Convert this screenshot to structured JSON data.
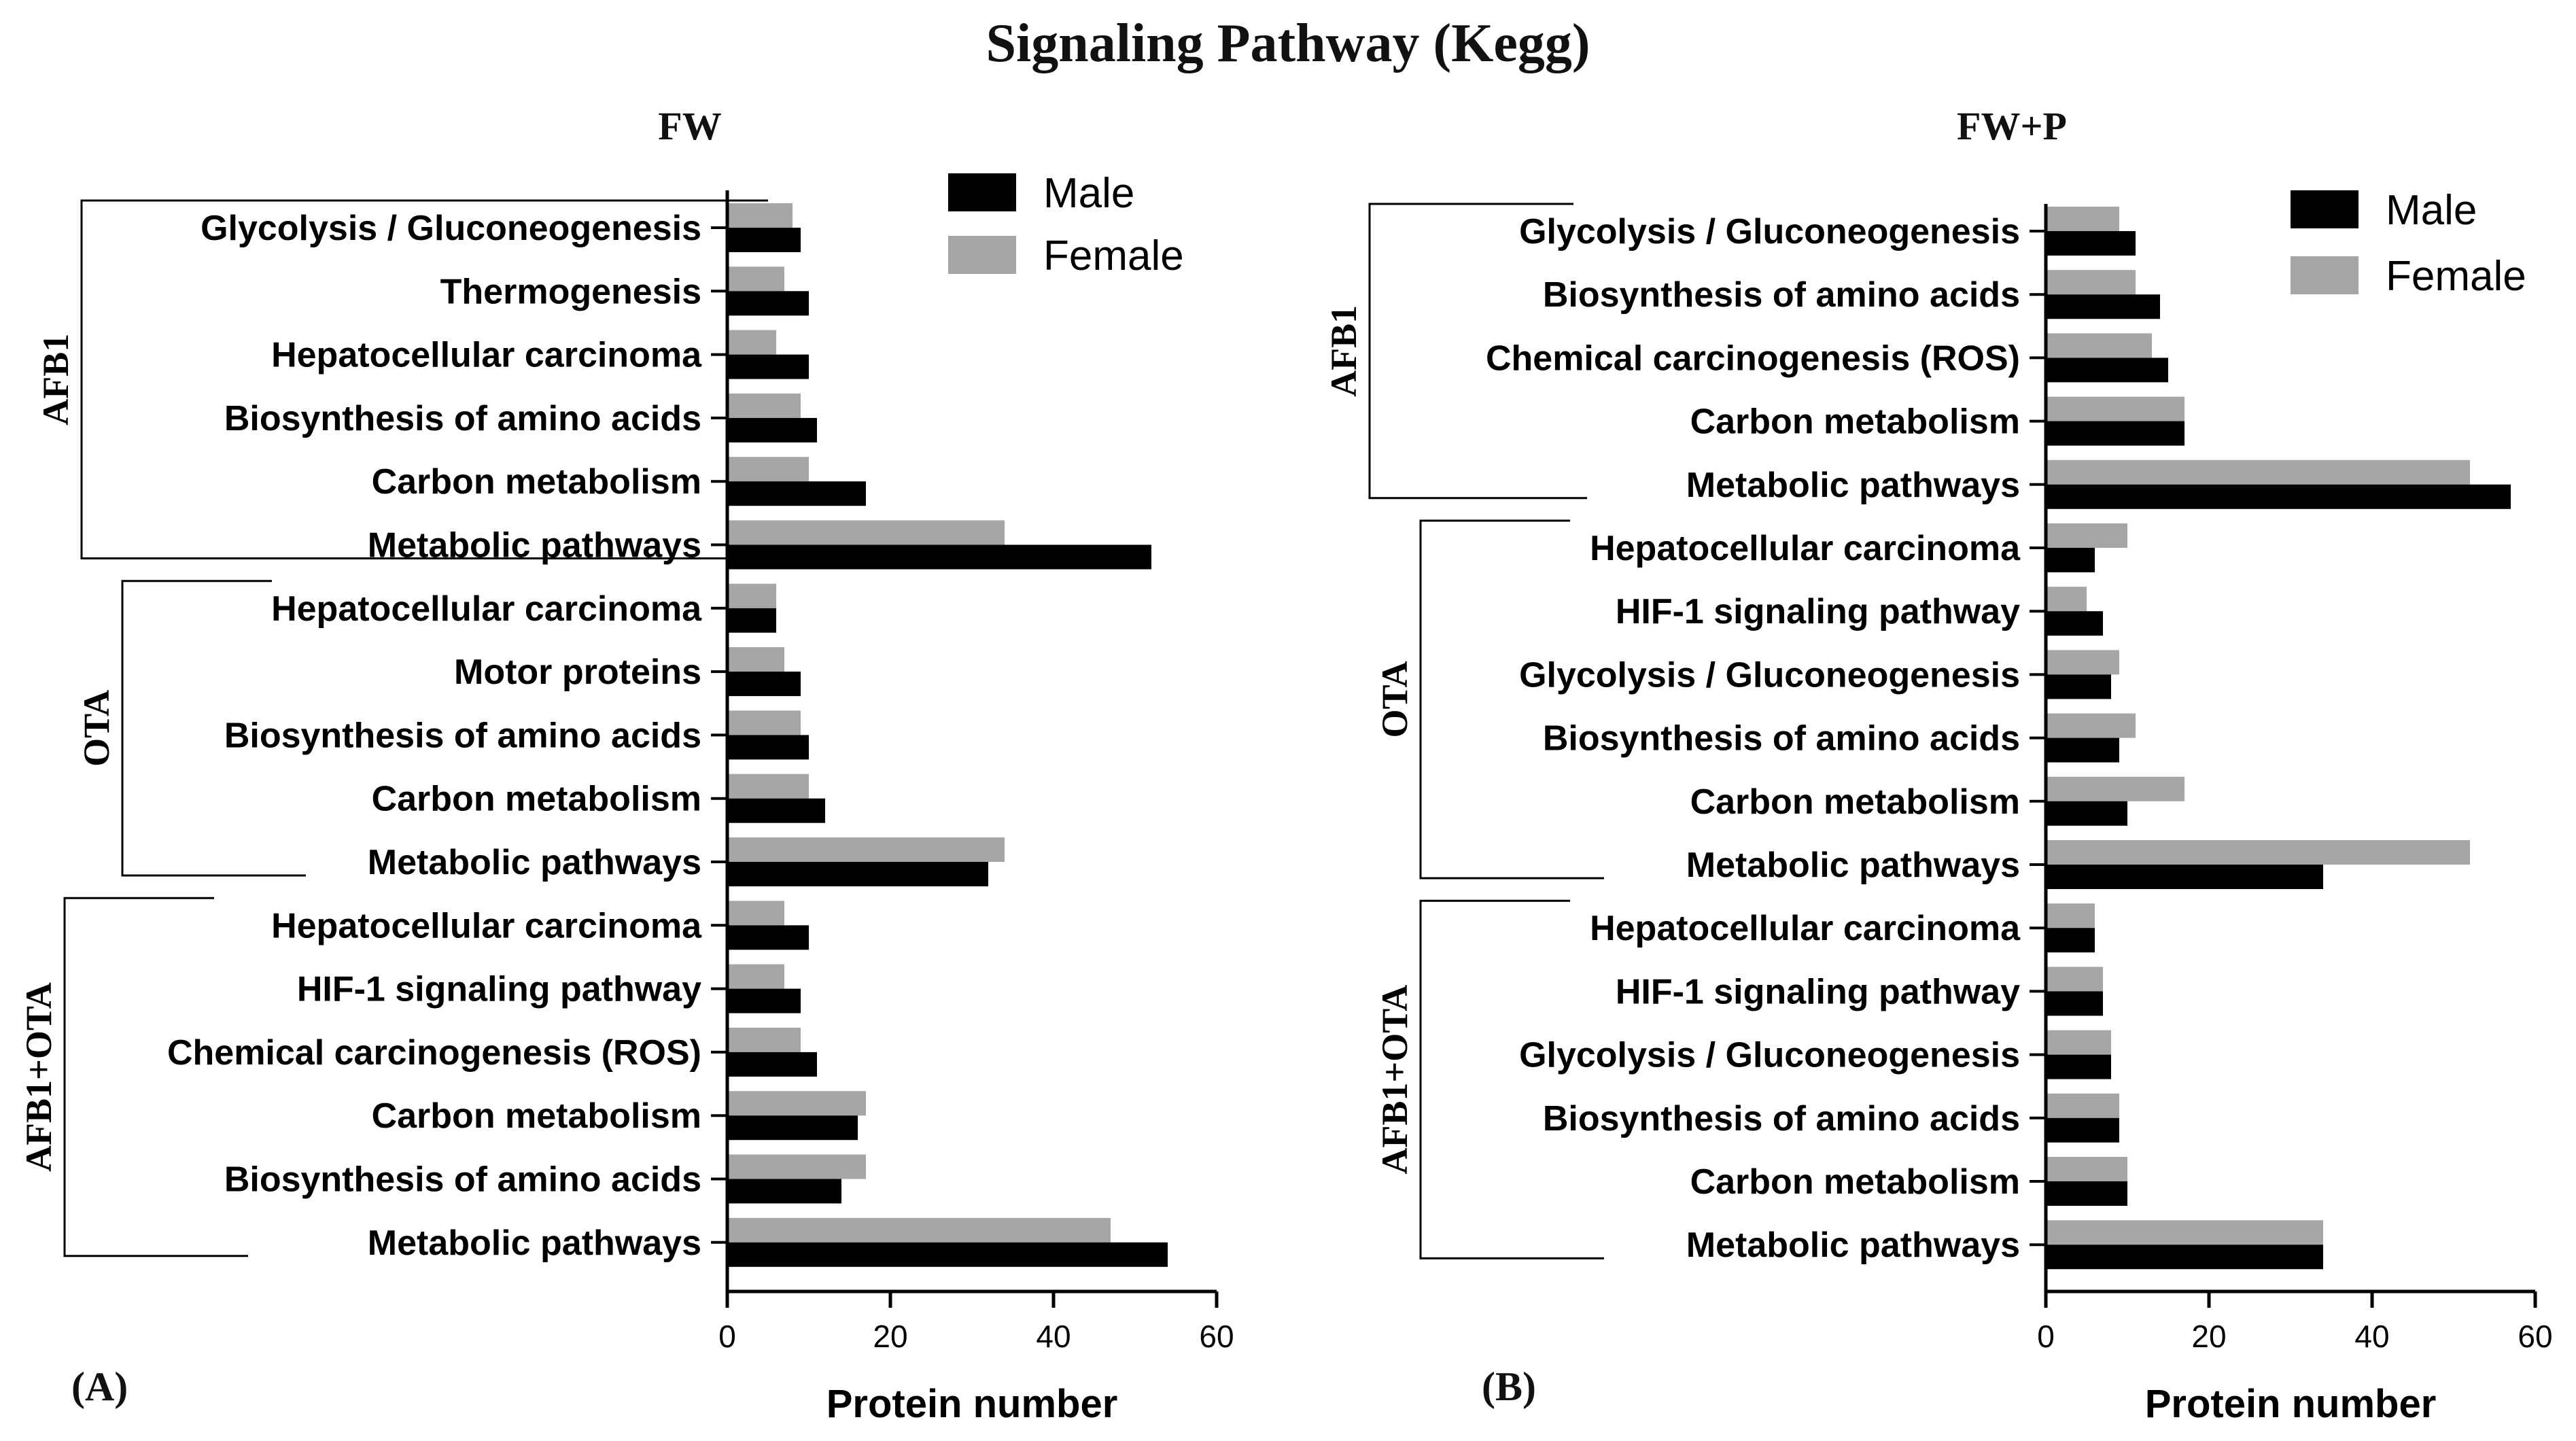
{
  "figure": {
    "title": "Signaling Pathway (Kegg)",
    "colors": {
      "male": "#000000",
      "female": "#a6a6a6",
      "axis": "#000000"
    }
  },
  "chart_data": [
    {
      "type": "bar",
      "orientation": "horizontal",
      "panel_label": "(A)",
      "title": "FW",
      "xlabel": "Protein number",
      "ylabel": "",
      "xlim": [
        0,
        60
      ],
      "xticks": [
        0,
        20,
        40,
        60
      ],
      "legend": {
        "position": "top-right",
        "entries": [
          "Male",
          "Female"
        ]
      },
      "series": [
        {
          "name": "Male",
          "color": "#000000"
        },
        {
          "name": "Female",
          "color": "#a6a6a6"
        }
      ],
      "groups": [
        {
          "name": "AFB1",
          "categories": [
            "Glycolysis / Gluconeogenesis",
            "Thermogenesis",
            "Hepatocellular carcinoma",
            "Biosynthesis of amino acids",
            "Carbon metabolism",
            "Metabolic pathways"
          ],
          "male": [
            9,
            10,
            10,
            11,
            17,
            52
          ],
          "female": [
            8,
            7,
            6,
            9,
            10,
            34
          ]
        },
        {
          "name": "OTA",
          "categories": [
            "Hepatocellular carcinoma",
            "Motor proteins",
            "Biosynthesis of amino acids",
            "Carbon metabolism",
            "Metabolic pathways"
          ],
          "male": [
            6,
            9,
            10,
            12,
            32
          ],
          "female": [
            6,
            7,
            9,
            10,
            34
          ]
        },
        {
          "name": "AFB1+OTA",
          "categories": [
            "Hepatocellular carcinoma",
            "HIF-1 signaling pathway",
            "Chemical carcinogenesis (ROS)",
            "Carbon metabolism",
            "Biosynthesis of amino acids",
            "Metabolic pathways"
          ],
          "male": [
            10,
            9,
            11,
            16,
            14,
            54
          ],
          "female": [
            7,
            7,
            9,
            17,
            17,
            47
          ]
        }
      ]
    },
    {
      "type": "bar",
      "orientation": "horizontal",
      "panel_label": "(B)",
      "title": "FW+P",
      "xlabel": "Protein number",
      "ylabel": "",
      "xlim": [
        0,
        60
      ],
      "xticks": [
        0,
        20,
        40,
        60
      ],
      "legend": {
        "position": "top-right",
        "entries": [
          "Male",
          "Female"
        ]
      },
      "series": [
        {
          "name": "Male",
          "color": "#000000"
        },
        {
          "name": "Female",
          "color": "#a6a6a6"
        }
      ],
      "groups": [
        {
          "name": "AFB1",
          "categories": [
            "Glycolysis / Gluconeogenesis",
            "Biosynthesis of amino acids",
            "Chemical carcinogenesis (ROS)",
            "Carbon metabolism",
            "Metabolic pathways"
          ],
          "male": [
            11,
            14,
            15,
            17,
            57
          ],
          "female": [
            9,
            11,
            13,
            17,
            52
          ]
        },
        {
          "name": "OTA",
          "categories": [
            "Hepatocellular carcinoma",
            "HIF-1 signaling pathway",
            "Glycolysis / Gluconeogenesis",
            "Biosynthesis of amino acids",
            "Carbon metabolism",
            "Metabolic pathways"
          ],
          "male": [
            6,
            7,
            8,
            9,
            10,
            34
          ],
          "female": [
            10,
            5,
            9,
            11,
            17,
            52
          ]
        },
        {
          "name": "AFB1+OTA",
          "categories": [
            "Hepatocellular carcinoma",
            "HIF-1 signaling pathway",
            "Glycolysis / Gluconeogenesis",
            "Biosynthesis of amino acids",
            "Carbon metabolism",
            "Metabolic pathways"
          ],
          "male": [
            6,
            7,
            8,
            9,
            10,
            34
          ],
          "female": [
            6,
            7,
            8,
            9,
            10,
            34
          ]
        }
      ]
    }
  ]
}
